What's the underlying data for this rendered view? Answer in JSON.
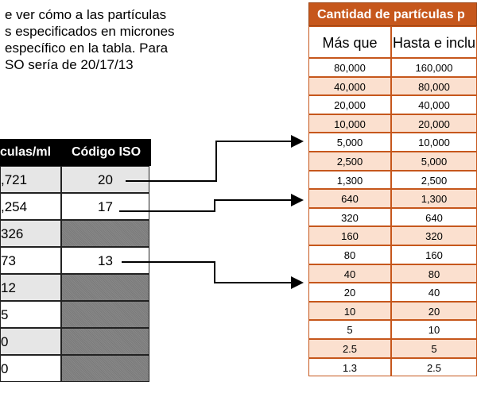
{
  "intro_lines": [
    "e ver cómo a las partículas",
    "s especificados en micrones",
    "específico en la tabla. Para",
    "SO sería de 20/17/13"
  ],
  "left_table": {
    "headers": [
      "culas/ml",
      "Código ISO"
    ],
    "rows": [
      {
        "count": ",721",
        "iso": "20",
        "shade": "gray"
      },
      {
        "count": ",254",
        "iso": "17",
        "shade": "white"
      },
      {
        "count": "326",
        "iso": "",
        "shade": "gray"
      },
      {
        "count": "73",
        "iso": "13",
        "shade": "white"
      },
      {
        "count": "12",
        "iso": "",
        "shade": "gray"
      },
      {
        "count": "5",
        "iso": "",
        "shade": "white"
      },
      {
        "count": "0",
        "iso": "",
        "shade": "gray"
      },
      {
        "count": "0",
        "iso": "",
        "shade": "white"
      }
    ]
  },
  "right_table": {
    "title": "Cantidad de partículas p",
    "headers": [
      "Más que",
      "Hasta e inclu"
    ],
    "rows": [
      {
        "more_than": "80,000",
        "up_to": "160,000"
      },
      {
        "more_than": "40,000",
        "up_to": "80,000"
      },
      {
        "more_than": "20,000",
        "up_to": "40,000"
      },
      {
        "more_than": "10,000",
        "up_to": "20,000"
      },
      {
        "more_than": "5,000",
        "up_to": "10,000"
      },
      {
        "more_than": "2,500",
        "up_to": "5,000"
      },
      {
        "more_than": "1,300",
        "up_to": "2,500"
      },
      {
        "more_than": "640",
        "up_to": "1,300"
      },
      {
        "more_than": "320",
        "up_to": "640"
      },
      {
        "more_than": "160",
        "up_to": "320"
      },
      {
        "more_than": "80",
        "up_to": "160"
      },
      {
        "more_than": "40",
        "up_to": "80"
      },
      {
        "more_than": "20",
        "up_to": "40"
      },
      {
        "more_than": "10",
        "up_to": "20"
      },
      {
        "more_than": "5",
        "up_to": "10"
      },
      {
        "more_than": "2.5",
        "up_to": "5"
      },
      {
        "more_than": "1.3",
        "up_to": "2.5"
      }
    ]
  },
  "colors": {
    "title_bg": "#c6571c",
    "peach": "#fbe0cf",
    "border": "#c6571c"
  }
}
